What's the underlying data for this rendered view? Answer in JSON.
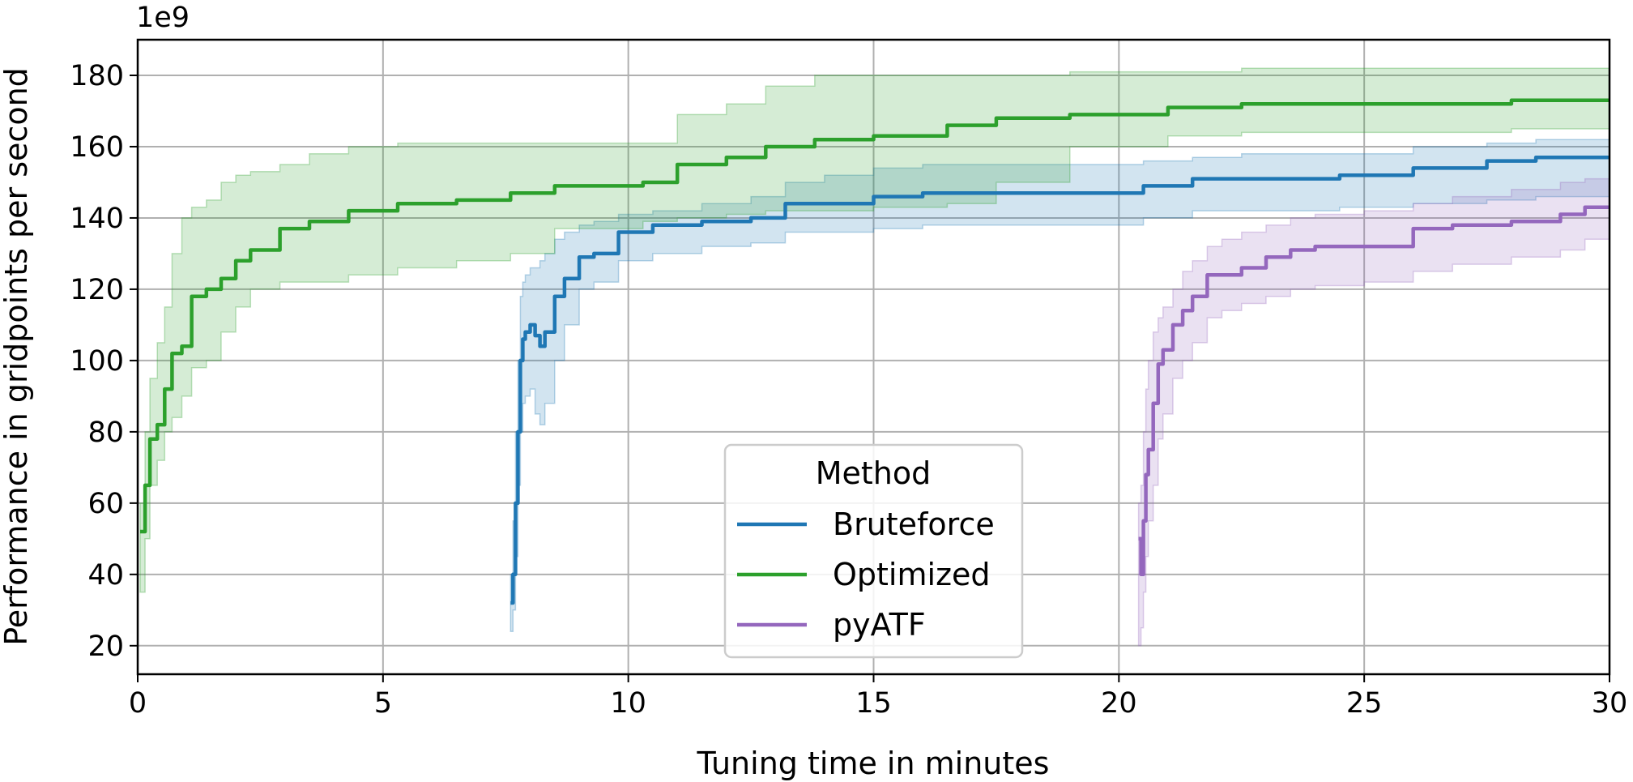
{
  "chart_data": {
    "type": "line",
    "xlabel": "Tuning time in minutes",
    "ylabel": "Performance in gridpoints per second",
    "y_offset_label": "1e9",
    "xlim": [
      0,
      30
    ],
    "ylim": [
      12,
      190
    ],
    "xticks": [
      0,
      5,
      10,
      15,
      20,
      25,
      30
    ],
    "yticks": [
      20,
      40,
      60,
      80,
      100,
      120,
      140,
      160,
      180
    ],
    "grid": true,
    "legend": {
      "title": "Method",
      "placement": "lower center"
    },
    "series": [
      {
        "name": "Bruteforce",
        "color": "#1f77b4",
        "x": [
          7.6,
          7.65,
          7.7,
          7.75,
          7.8,
          7.85,
          7.9,
          8.0,
          8.1,
          8.2,
          8.3,
          8.5,
          8.7,
          9.0,
          9.3,
          9.8,
          10.5,
          11.5,
          12.5,
          13.2,
          14.0,
          15.0,
          16.0,
          17.5,
          19.0,
          20.5,
          21.5,
          22.5,
          24.5,
          26.0,
          27.5,
          28.5,
          30.0
        ],
        "y": [
          32,
          40,
          60,
          80,
          100,
          106,
          108,
          110,
          107,
          104,
          108,
          118,
          123,
          129,
          130,
          136,
          138,
          139,
          140,
          144,
          144,
          146,
          147,
          147,
          147,
          149,
          151,
          151,
          152,
          154,
          156,
          157,
          157
        ],
        "lower": [
          24,
          30,
          45,
          65,
          80,
          88,
          90,
          92,
          85,
          82,
          88,
          100,
          110,
          120,
          122,
          128,
          130,
          132,
          133,
          136,
          136,
          137,
          138,
          138,
          138,
          140,
          142,
          142,
          143,
          144,
          145,
          146,
          146
        ],
        "upper": [
          40,
          55,
          80,
          100,
          118,
          122,
          124,
          126,
          126,
          128,
          130,
          134,
          136,
          138,
          139,
          141,
          142,
          144,
          146,
          150,
          152,
          154,
          155,
          155,
          155,
          156,
          157,
          158,
          158,
          160,
          161,
          162,
          162
        ]
      },
      {
        "name": "Optimized",
        "color": "#2ca02c",
        "x": [
          0.05,
          0.15,
          0.25,
          0.4,
          0.55,
          0.7,
          0.9,
          1.1,
          1.4,
          1.7,
          2.0,
          2.3,
          2.9,
          3.5,
          4.3,
          5.3,
          6.5,
          7.6,
          8.5,
          10.3,
          11.0,
          12.0,
          12.8,
          13.8,
          15.0,
          16.5,
          17.5,
          19.0,
          21.0,
          22.5,
          24.0,
          26.0,
          28.0,
          30.0
        ],
        "y": [
          52,
          65,
          78,
          82,
          92,
          102,
          104,
          118,
          120,
          123,
          128,
          131,
          137,
          139,
          142,
          144,
          145,
          147,
          149,
          150,
          155,
          157,
          160,
          162,
          163,
          166,
          168,
          169,
          171,
          172,
          172,
          172,
          173,
          173
        ],
        "lower": [
          35,
          50,
          65,
          72,
          80,
          84,
          90,
          98,
          100,
          108,
          115,
          120,
          122,
          122,
          124,
          126,
          128,
          130,
          137,
          139,
          140,
          141,
          142,
          142,
          143,
          144,
          150,
          160,
          163,
          164,
          164,
          164,
          165,
          165
        ],
        "upper": [
          60,
          80,
          95,
          105,
          115,
          130,
          140,
          143,
          145,
          150,
          152,
          153,
          155,
          158,
          160,
          161,
          161,
          161,
          161,
          161,
          169,
          172,
          177,
          180,
          180,
          180,
          180,
          181,
          181,
          182,
          182,
          182,
          182,
          182
        ]
      },
      {
        "name": "pyATF",
        "color": "#9467bd",
        "x": [
          20.4,
          20.45,
          20.5,
          20.55,
          20.6,
          20.7,
          20.8,
          20.9,
          21.1,
          21.3,
          21.5,
          21.8,
          22.1,
          22.5,
          23.0,
          23.5,
          24.0,
          25.0,
          26.0,
          26.8,
          28.0,
          29.0,
          29.5,
          30.0
        ],
        "y": [
          50,
          40,
          55,
          68,
          75,
          88,
          99,
          103,
          110,
          114,
          118,
          124,
          124,
          126,
          129,
          131,
          132,
          132,
          137,
          138,
          139,
          141,
          143,
          143
        ],
        "lower": [
          20,
          25,
          35,
          45,
          55,
          65,
          78,
          85,
          95,
          100,
          105,
          112,
          114,
          116,
          118,
          120,
          121,
          122,
          125,
          127,
          129,
          131,
          134,
          136
        ],
        "upper": [
          60,
          65,
          80,
          92,
          100,
          108,
          112,
          115,
          120,
          125,
          128,
          132,
          134,
          136,
          138,
          140,
          141,
          142,
          144,
          146,
          148,
          150,
          151,
          152
        ]
      }
    ]
  }
}
